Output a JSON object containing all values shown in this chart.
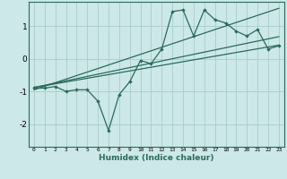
{
  "title": "",
  "xlabel": "Humidex (Indice chaleur)",
  "bg_color": "#cce8e8",
  "grid_color": "#aacccc",
  "line_color": "#2a6b5a",
  "xlim": [
    -0.5,
    23.5
  ],
  "ylim": [
    -2.7,
    1.75
  ],
  "x_ticks": [
    0,
    1,
    2,
    3,
    4,
    5,
    6,
    7,
    8,
    9,
    10,
    11,
    12,
    13,
    14,
    15,
    16,
    17,
    18,
    19,
    20,
    21,
    22,
    23
  ],
  "y_ticks": [
    -2,
    -1,
    0,
    1
  ],
  "scatter_x": [
    0,
    1,
    2,
    3,
    4,
    5,
    6,
    7,
    8,
    9,
    10,
    11,
    12,
    13,
    14,
    15,
    16,
    17,
    18,
    19,
    20,
    21,
    22,
    23
  ],
  "scatter_y": [
    -0.9,
    -0.9,
    -0.85,
    -1.0,
    -0.95,
    -0.95,
    -1.3,
    -2.2,
    -1.1,
    -0.7,
    -0.05,
    -0.15,
    0.3,
    1.45,
    1.5,
    0.7,
    1.5,
    1.2,
    1.1,
    0.85,
    0.7,
    0.9,
    0.3,
    0.4
  ],
  "line1_x": [
    0,
    23
  ],
  "line1_y": [
    -0.88,
    0.42
  ],
  "line2_x": [
    0,
    23
  ],
  "line2_y": [
    -0.88,
    0.68
  ],
  "line3_x": [
    0,
    23
  ],
  "line3_y": [
    -0.95,
    1.55
  ]
}
